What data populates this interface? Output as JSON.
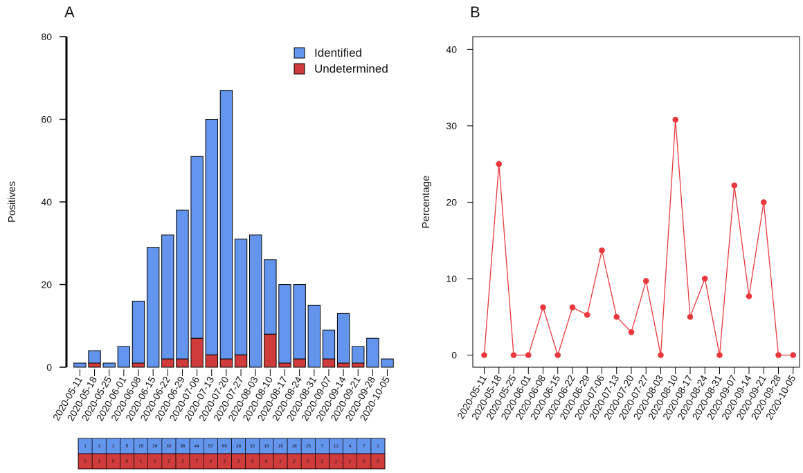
{
  "colors": {
    "identified": "#6495ED",
    "undetermined": "#D03C3C",
    "line": "#E8383D"
  },
  "chart_data": [
    {
      "type": "bar",
      "stacked": true,
      "panel_label": "A",
      "ylabel": "Positives",
      "xlabel": "",
      "ylim": [
        0,
        80
      ],
      "yticks": [
        0,
        20,
        40,
        60,
        80
      ],
      "legend_position": "top-right",
      "categories": [
        "2020-05-11",
        "2020-05-18",
        "2020-05-25",
        "2020-06-01",
        "2020-06-08",
        "2020-06-15",
        "2020-06-22",
        "2020-06-29",
        "2020-07-06",
        "2020-07-13",
        "2020-07-20",
        "2020-07-27",
        "2020-08-03",
        "2020-08-10",
        "2020-08-17",
        "2020-08-24",
        "2020-08-31",
        "2020-09-07",
        "2020-09-14",
        "2020-09-21",
        "2020-09-28",
        "2020-10-05"
      ],
      "series": [
        {
          "name": "Undetermined",
          "values": [
            0,
            1,
            0,
            0,
            1,
            0,
            2,
            2,
            7,
            3,
            2,
            3,
            0,
            8,
            1,
            2,
            0,
            2,
            1,
            1,
            0,
            0
          ]
        },
        {
          "name": "Identified",
          "values": [
            1,
            3,
            1,
            5,
            15,
            29,
            30,
            36,
            44,
            57,
            65,
            28,
            32,
            18,
            19,
            18,
            15,
            7,
            12,
            4,
            7,
            2
          ]
        }
      ],
      "table": {
        "identified_row": [
          "1",
          "3",
          "1",
          "5",
          "15",
          "29",
          "30",
          "36",
          "44",
          "57",
          "65",
          "28",
          "32",
          "18",
          "19",
          "18",
          "15",
          "7",
          "12",
          "4",
          "7",
          "2"
        ],
        "undetermined_row": [
          "0",
          "1",
          "0",
          "0",
          "1",
          "0",
          "2",
          "2",
          "7",
          "3",
          "2",
          "3",
          "0",
          "8",
          "1",
          "2",
          "0",
          "2",
          "1",
          "1",
          "0",
          "0"
        ]
      }
    },
    {
      "type": "line",
      "panel_label": "B",
      "ylabel": "Percentage",
      "xlabel": "",
      "ylim": [
        0,
        40
      ],
      "yticks": [
        0,
        10,
        20,
        30,
        40
      ],
      "x": [
        "2020-05-11",
        "2020-05-18",
        "2020-05-25",
        "2020-06-01",
        "2020-06-08",
        "2020-06-15",
        "2020-06-22",
        "2020-06-29",
        "2020-07-06",
        "2020-07-13",
        "2020-07-20",
        "2020-07-27",
        "2020-08-03",
        "2020-08-10",
        "2020-08-17",
        "2020-08-24",
        "2020-08-31",
        "2020-09-07",
        "2020-09-14",
        "2020-09-21",
        "2020-09-28",
        "2020-10-05"
      ],
      "series": [
        {
          "values": [
            0,
            25,
            0,
            0,
            6.25,
            0,
            6.25,
            5.26,
            13.7,
            5.0,
            3.0,
            9.7,
            0,
            30.8,
            5.0,
            10.0,
            0,
            22.2,
            7.7,
            20.0,
            0,
            0
          ]
        }
      ]
    }
  ]
}
